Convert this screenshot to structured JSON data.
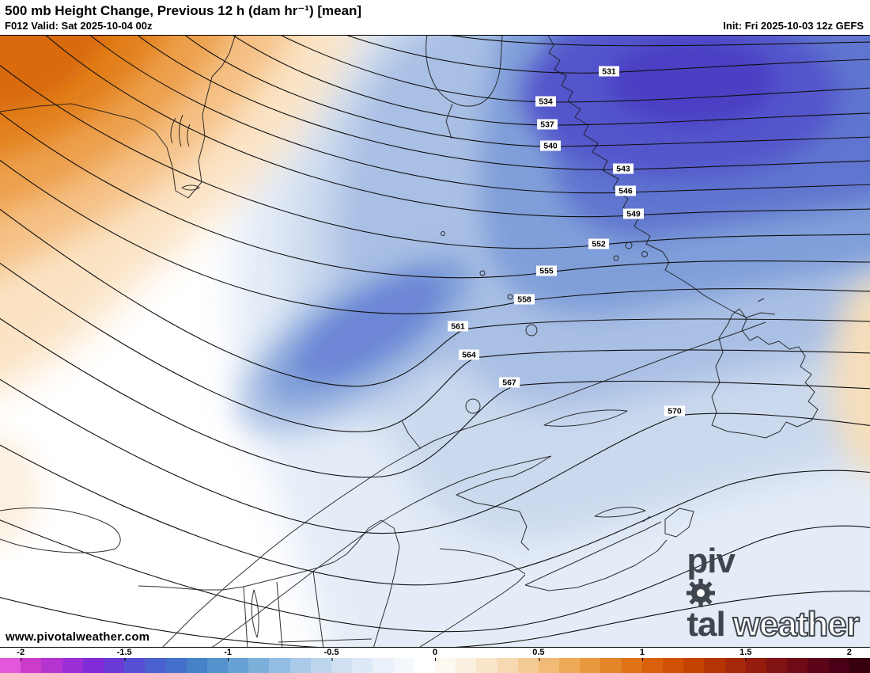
{
  "header": {
    "title": "500 mb Height Change, Previous 12 h (dam hr⁻¹) [mean]",
    "forecast_label": "F012 Valid: Sat 2025-10-04 00z",
    "init_label": "Init: Fri 2025-10-03 12z GEFS"
  },
  "map": {
    "contour_labels": [
      "531",
      "534",
      "537",
      "540",
      "543",
      "546",
      "549",
      "552",
      "555",
      "558",
      "561",
      "564",
      "567",
      "570"
    ]
  },
  "footer": {
    "watermark": "www.pivotalweather.com",
    "logo_part1": "piv",
    "logo_part2": "tal",
    "logo_part3": "weather"
  },
  "colorbar": {
    "ticks": [
      "-2",
      "-1.5",
      "-1",
      "-0.5",
      "0",
      "0.5",
      "1",
      "1.5",
      "2"
    ],
    "colors": [
      "#e258da",
      "#cb3ccb",
      "#b434d0",
      "#9b2ed6",
      "#812bd8",
      "#6b3ad6",
      "#5850d2",
      "#4a60ce",
      "#4270ca",
      "#4781c8",
      "#5591cc",
      "#67a1d4",
      "#7dafdb",
      "#93bde2",
      "#a9cae9",
      "#bdd6ee",
      "#cfe0f3",
      "#dde9f7",
      "#eaf1fa",
      "#f4f8fd",
      "#ffffff",
      "#fdf8f0",
      "#fbefdf",
      "#f9e5ca",
      "#f7d9b1",
      "#f4ca94",
      "#f1ba77",
      "#eeaa59",
      "#ea983f",
      "#e58529",
      "#e07218",
      "#d9600c",
      "#d05106",
      "#c44204",
      "#b53406",
      "#a5280a",
      "#941d0e",
      "#821313",
      "#6f0b16",
      "#5c0418",
      "#4a0016",
      "#36000f"
    ]
  }
}
